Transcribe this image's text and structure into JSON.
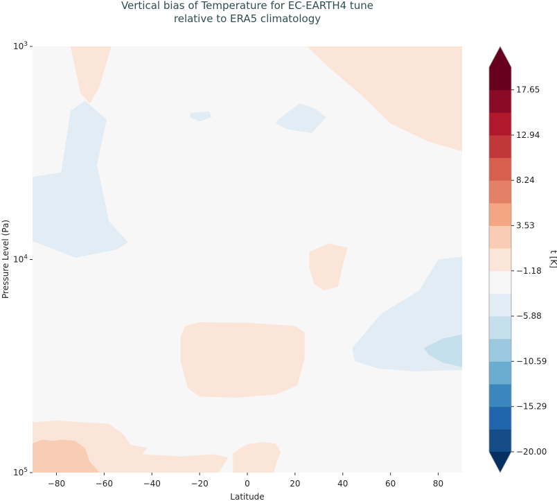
{
  "chart_data": {
    "type": "contourf",
    "title_lines": [
      "Vertical bias of Temperature for EC-EARTH4 tune",
      "relative to ERA5 climatology"
    ],
    "xlabel": "Latitude",
    "ylabel": "Pressure Level (Pa)",
    "x_ticks": [
      "−80",
      "−60",
      "−40",
      "−20",
      "0",
      "20",
      "40",
      "60",
      "80"
    ],
    "x_tick_values": [
      -80,
      -60,
      -40,
      -20,
      0,
      20,
      40,
      60,
      80
    ],
    "xlim": [
      -90,
      90
    ],
    "y_scale": "log",
    "y_inverted": true,
    "ylim": [
      1000,
      100000
    ],
    "y_ticks": [
      {
        "value": 1000,
        "base": "10",
        "exp": "3"
      },
      {
        "value": 10000,
        "base": "10",
        "exp": "4"
      },
      {
        "value": 100000,
        "base": "10",
        "exp": "5"
      }
    ],
    "colorbar": {
      "label": "t [K]",
      "levels": [
        -20.0,
        -17.65,
        -15.29,
        -12.94,
        -10.59,
        -8.24,
        -5.88,
        -3.53,
        -1.18,
        1.18,
        3.53,
        5.88,
        8.24,
        10.59,
        12.94,
        15.29,
        17.65,
        20.0
      ],
      "colors": [
        "#053061",
        "#134c87",
        "#2166ac",
        "#3a87bd",
        "#6bacd1",
        "#9bc9e0",
        "#c5dfec",
        "#e1ecf4",
        "#f7f7f7",
        "#fbe5d8",
        "#f9cdb4",
        "#f4a582",
        "#e48066",
        "#d6604d",
        "#c1373a",
        "#b2182b",
        "#8a0b25",
        "#67001f"
      ],
      "tick_labels": [
        "17.65",
        "12.94",
        "8.24",
        "3.53",
        "−1.18",
        "−5.88",
        "−10.59",
        "−15.29",
        "−20.00"
      ],
      "tick_values": [
        17.65,
        12.94,
        8.24,
        3.53,
        -1.18,
        -5.88,
        -10.59,
        -15.29,
        -20.0
      ],
      "extend": "both"
    },
    "regions": [
      {
        "name": "warm-bias-top-left",
        "value": 2.4,
        "points": [
          [
            -57,
            1000
          ],
          [
            -62,
            1550
          ],
          [
            -66,
            1850
          ],
          [
            -70,
            1650
          ],
          [
            -74,
            1000
          ]
        ]
      },
      {
        "name": "warm-bias-top-right",
        "value": 2.4,
        "points": [
          [
            25,
            1000
          ],
          [
            90,
            1000
          ],
          [
            90,
            3100
          ],
          [
            76,
            2800
          ],
          [
            60,
            2300
          ],
          [
            48,
            1700
          ],
          [
            34,
            1250
          ]
        ]
      },
      {
        "name": "cold-bias-left",
        "value": -2.4,
        "points": [
          [
            -90,
            4100
          ],
          [
            -78,
            3900
          ],
          [
            -74,
            2000
          ],
          [
            -68,
            1800
          ],
          [
            -59,
            2200
          ],
          [
            -63,
            3600
          ],
          [
            -58,
            6600
          ],
          [
            -50,
            8300
          ],
          [
            -55,
            9000
          ],
          [
            -72,
            9800
          ],
          [
            -90,
            8200
          ]
        ]
      },
      {
        "name": "cold-bias-small-mid",
        "value": -2.4,
        "points": [
          [
            -24,
            2050
          ],
          [
            -16,
            2020
          ],
          [
            -15,
            2150
          ],
          [
            -20,
            2250
          ],
          [
            -24,
            2150
          ]
        ]
      },
      {
        "name": "cold-bias-upper-mid",
        "value": -2.4,
        "points": [
          [
            13,
            2200
          ],
          [
            22,
            1850
          ],
          [
            28,
            1950
          ],
          [
            33,
            2150
          ],
          [
            27,
            2550
          ],
          [
            17,
            2450
          ],
          [
            12,
            2300
          ]
        ]
      },
      {
        "name": "warm-bias-mid",
        "value": 2.4,
        "points": [
          [
            26,
            9200
          ],
          [
            34,
            8400
          ],
          [
            42,
            8800
          ],
          [
            40,
            10600
          ],
          [
            38,
            13400
          ],
          [
            32,
            14000
          ],
          [
            28,
            13000
          ],
          [
            26,
            11000
          ]
        ]
      },
      {
        "name": "warm-bias-center",
        "value": 2.4,
        "points": [
          [
            -26,
            20500
          ],
          [
            -20,
            19700
          ],
          [
            0,
            19800
          ],
          [
            20,
            20500
          ],
          [
            24,
            22000
          ],
          [
            24,
            29000
          ],
          [
            21,
            39000
          ],
          [
            12,
            43000
          ],
          [
            -4,
            44500
          ],
          [
            -20,
            44000
          ],
          [
            -25,
            40000
          ],
          [
            -28,
            30000
          ],
          [
            -28,
            23000
          ]
        ]
      },
      {
        "name": "cold-bias-right",
        "value": -2.4,
        "points": [
          [
            44,
            26000
          ],
          [
            56,
            18000
          ],
          [
            72,
            14000
          ],
          [
            80,
            10000
          ],
          [
            90,
            9700
          ],
          [
            90,
            33000
          ],
          [
            70,
            33500
          ],
          [
            55,
            32500
          ],
          [
            45,
            30000
          ]
        ]
      },
      {
        "name": "cold-bias-right-core",
        "value": -4.7,
        "points": [
          [
            74,
            26000
          ],
          [
            82,
            23500
          ],
          [
            90,
            22500
          ],
          [
            90,
            32000
          ],
          [
            82,
            30500
          ],
          [
            76,
            28000
          ]
        ]
      },
      {
        "name": "warm-bias-bottom-band",
        "value": 2.4,
        "points": [
          [
            -90,
            58000
          ],
          [
            -80,
            57000
          ],
          [
            -58,
            59000
          ],
          [
            -52,
            66000
          ],
          [
            -49,
            74000
          ],
          [
            -42,
            76500
          ],
          [
            -44,
            82000
          ],
          [
            -28,
            84000
          ],
          [
            -14,
            82000
          ],
          [
            -8,
            85000
          ],
          [
            -12,
            100000
          ],
          [
            -90,
            100000
          ]
        ]
      },
      {
        "name": "warm-bias-bottom-left-core",
        "value": 4.7,
        "points": [
          [
            -90,
            73000
          ],
          [
            -86,
            70000
          ],
          [
            -82,
            71000
          ],
          [
            -78,
            70000
          ],
          [
            -72,
            71000
          ],
          [
            -68,
            77000
          ],
          [
            -66,
            89000
          ],
          [
            -62,
            100000
          ],
          [
            -90,
            100000
          ]
        ]
      },
      {
        "name": "warm-bias-bottom-center",
        "value": 2.4,
        "points": [
          [
            -6,
            81000
          ],
          [
            0,
            73500
          ],
          [
            6,
            72000
          ],
          [
            12,
            73000
          ],
          [
            14,
            80000
          ],
          [
            12,
            92000
          ],
          [
            11,
            100000
          ],
          [
            -6,
            100000
          ]
        ]
      }
    ]
  }
}
